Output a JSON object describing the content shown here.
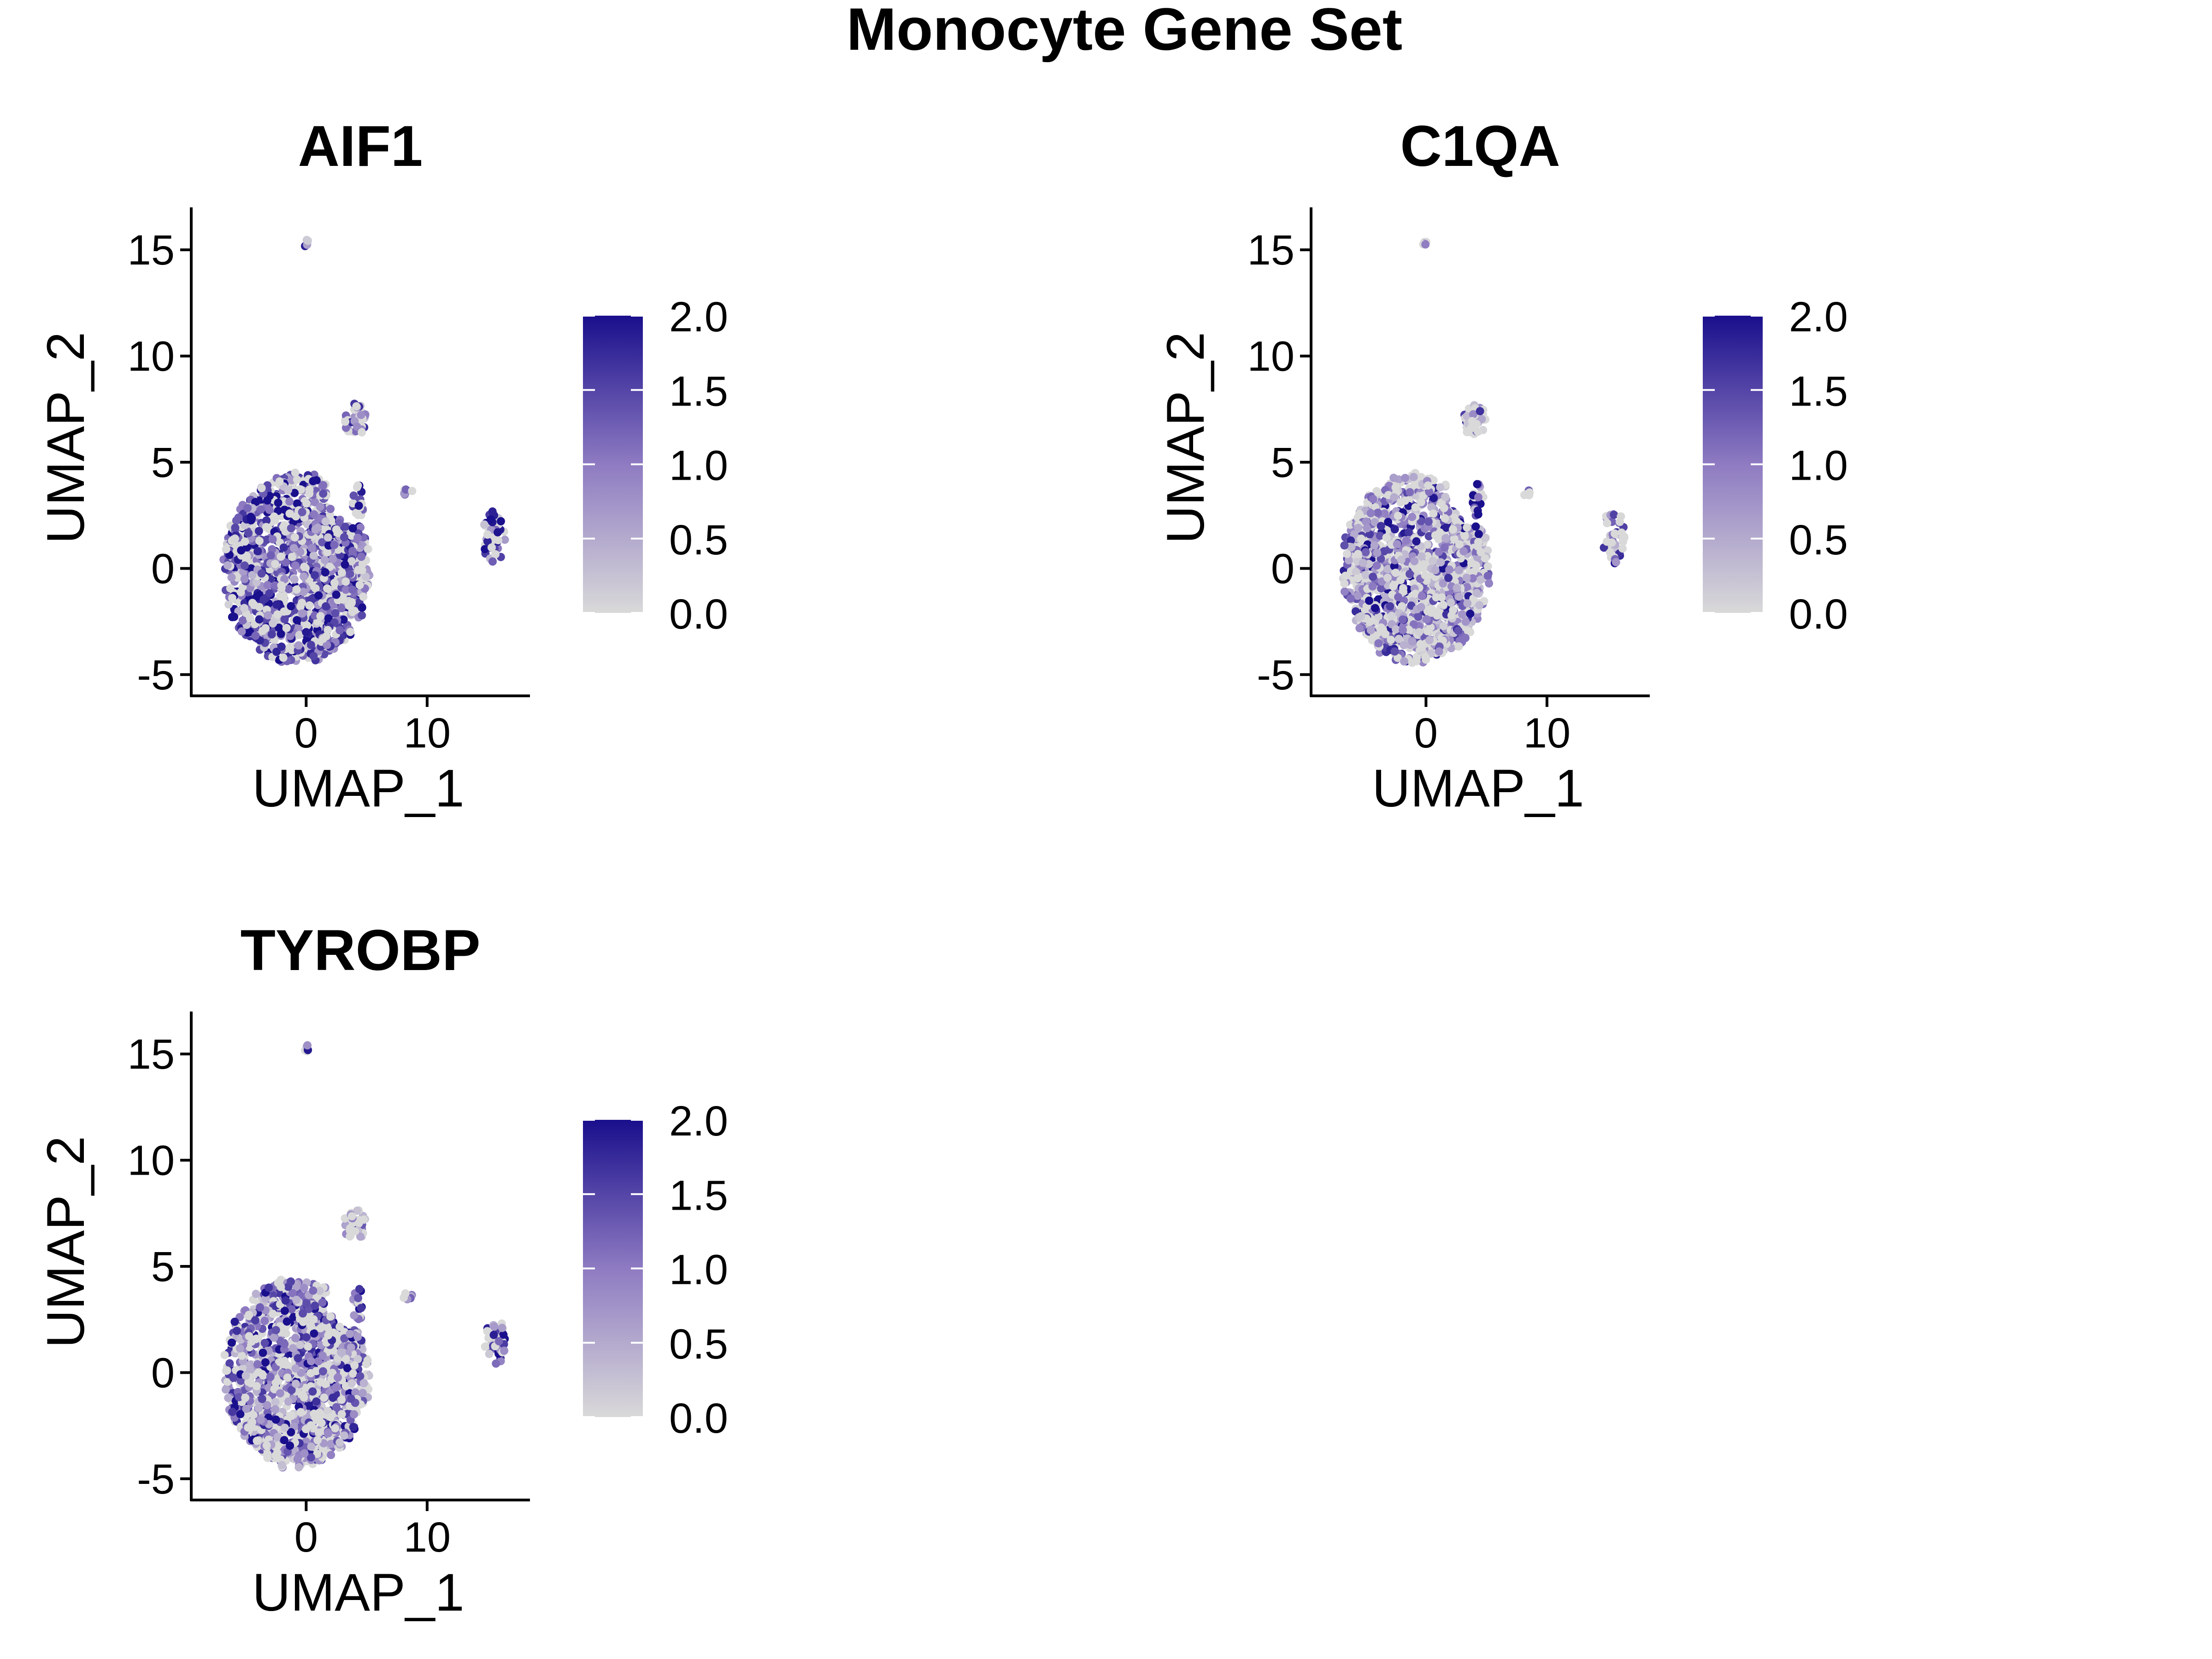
{
  "figure": {
    "title": "Monocyte Gene Set"
  },
  "chart_data": [
    {
      "type": "scatter",
      "title": "AIF1",
      "xlabel": "UMAP_1",
      "ylabel": "UMAP_2",
      "xlim": [
        -9.5,
        18.5
      ],
      "ylim": [
        -6,
        17
      ],
      "xticks": [
        0,
        10
      ],
      "xtick_labels": [
        "0",
        "10"
      ],
      "yticks": [
        -5,
        0,
        5,
        10,
        15
      ],
      "ytick_labels": [
        "-5",
        "0",
        "5",
        "10",
        "15"
      ],
      "colorbar": {
        "min": 0.0,
        "max": 2.0,
        "ticks": [
          "0.0",
          "0.5",
          "1.0",
          "1.5",
          "2.0"
        ],
        "low_color": "#d9d9d9",
        "high_color": "#1a0f8c"
      },
      "clusters": [
        {
          "cx": -0.8,
          "cy": 0.0,
          "rx": 6.2,
          "ry": 4.6,
          "n": 1400,
          "mean_expression": 1.2
        },
        {
          "cx": 4.0,
          "cy": 7.0,
          "rx": 1.0,
          "ry": 0.8,
          "n": 40,
          "mean_expression": 0.9
        },
        {
          "cx": 4.3,
          "cy": 3.2,
          "rx": 0.5,
          "ry": 0.8,
          "n": 20,
          "mean_expression": 1.5
        },
        {
          "cx": 8.4,
          "cy": 3.6,
          "rx": 0.4,
          "ry": 0.2,
          "n": 6,
          "mean_expression": 0.6
        },
        {
          "cx": 15.5,
          "cy": 1.5,
          "rx": 1.0,
          "ry": 1.3,
          "n": 45,
          "mean_expression": 1.4
        },
        {
          "cx": 0.0,
          "cy": 15.3,
          "rx": 0.3,
          "ry": 0.2,
          "n": 5,
          "mean_expression": 0.3
        }
      ]
    },
    {
      "type": "scatter",
      "title": "C1QA",
      "xlabel": "UMAP_1",
      "ylabel": "UMAP_2",
      "xlim": [
        -9.5,
        18.5
      ],
      "ylim": [
        -6,
        17
      ],
      "xticks": [
        0,
        10
      ],
      "xtick_labels": [
        "0",
        "10"
      ],
      "yticks": [
        -5,
        0,
        5,
        10,
        15
      ],
      "ytick_labels": [
        "-5",
        "0",
        "5",
        "10",
        "15"
      ],
      "colorbar": {
        "min": 0.0,
        "max": 2.0,
        "ticks": [
          "0.0",
          "0.5",
          "1.0",
          "1.5",
          "2.0"
        ],
        "low_color": "#d9d9d9",
        "high_color": "#1a0f8c"
      },
      "clusters": [
        {
          "cx": -0.8,
          "cy": 0.0,
          "rx": 6.2,
          "ry": 4.6,
          "n": 1400,
          "mean_expression": 0.8
        },
        {
          "cx": 4.0,
          "cy": 7.0,
          "rx": 1.0,
          "ry": 0.8,
          "n": 40,
          "mean_expression": 0.4
        },
        {
          "cx": 4.3,
          "cy": 3.2,
          "rx": 0.5,
          "ry": 0.8,
          "n": 20,
          "mean_expression": 1.6
        },
        {
          "cx": 8.4,
          "cy": 3.6,
          "rx": 0.4,
          "ry": 0.2,
          "n": 6,
          "mean_expression": 0.2
        },
        {
          "cx": 15.5,
          "cy": 1.5,
          "rx": 1.0,
          "ry": 1.3,
          "n": 45,
          "mean_expression": 0.9
        },
        {
          "cx": 0.0,
          "cy": 15.3,
          "rx": 0.3,
          "ry": 0.2,
          "n": 5,
          "mean_expression": 0.1
        }
      ]
    },
    {
      "type": "scatter",
      "title": "TYROBP",
      "xlabel": "UMAP_1",
      "ylabel": "UMAP_2",
      "xlim": [
        -9.5,
        18.5
      ],
      "ylim": [
        -6,
        17
      ],
      "xticks": [
        0,
        10
      ],
      "xtick_labels": [
        "0",
        "10"
      ],
      "yticks": [
        -5,
        0,
        5,
        10,
        15
      ],
      "ytick_labels": [
        "-5",
        "0",
        "5",
        "10",
        "15"
      ],
      "colorbar": {
        "min": 0.0,
        "max": 2.0,
        "ticks": [
          "0.0",
          "0.5",
          "1.0",
          "1.5",
          "2.0"
        ],
        "low_color": "#d9d9d9",
        "high_color": "#1a0f8c"
      },
      "clusters": [
        {
          "cx": -0.8,
          "cy": 0.0,
          "rx": 6.2,
          "ry": 4.6,
          "n": 1400,
          "mean_expression": 0.9
        },
        {
          "cx": 4.0,
          "cy": 7.0,
          "rx": 1.0,
          "ry": 0.8,
          "n": 40,
          "mean_expression": 0.4
        },
        {
          "cx": 4.3,
          "cy": 3.2,
          "rx": 0.5,
          "ry": 0.8,
          "n": 20,
          "mean_expression": 1.1
        },
        {
          "cx": 8.4,
          "cy": 3.6,
          "rx": 0.4,
          "ry": 0.2,
          "n": 6,
          "mean_expression": 0.8
        },
        {
          "cx": 15.5,
          "cy": 1.5,
          "rx": 1.0,
          "ry": 1.3,
          "n": 45,
          "mean_expression": 1.2
        },
        {
          "cx": 0.0,
          "cy": 15.3,
          "rx": 0.3,
          "ry": 0.2,
          "n": 5,
          "mean_expression": 0.8
        }
      ]
    }
  ]
}
